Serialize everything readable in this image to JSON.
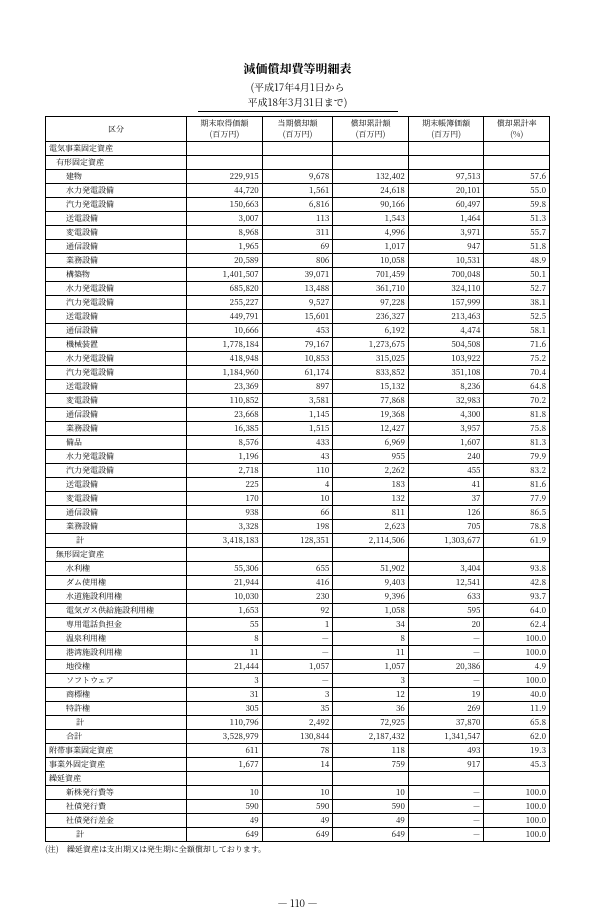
{
  "title": "減価償却費等明細表",
  "period1": "(平成17年4月1日から",
  "period2": "平成18年3月31日まで)",
  "headers": [
    "区分",
    "期末取得価額\n(百万円)",
    "当期償却額\n(百万円)",
    "償却累計額\n(百万円)",
    "期末帳簿価額\n(百万円)",
    "償却累計率\n(%)"
  ],
  "rows": [
    {
      "t": "電気事業固定資産",
      "i": 0
    },
    {
      "t": "有形固定資産",
      "i": 1
    },
    {
      "t": "建物",
      "i": 2,
      "v": [
        "229,915",
        "9,678",
        "132,402",
        "97,513",
        "57.6"
      ]
    },
    {
      "t": "水力発電設備",
      "i": 2,
      "v": [
        "44,720",
        "1,561",
        "24,618",
        "20,101",
        "55.0"
      ]
    },
    {
      "t": "汽力発電設備",
      "i": 2,
      "v": [
        "150,663",
        "6,816",
        "90,166",
        "60,497",
        "59.8"
      ]
    },
    {
      "t": "送電設備",
      "i": 2,
      "v": [
        "3,007",
        "113",
        "1,543",
        "1,464",
        "51.3"
      ]
    },
    {
      "t": "変電設備",
      "i": 2,
      "v": [
        "8,968",
        "311",
        "4,996",
        "3,971",
        "55.7"
      ]
    },
    {
      "t": "通信設備",
      "i": 2,
      "v": [
        "1,965",
        "69",
        "1,017",
        "947",
        "51.8"
      ]
    },
    {
      "t": "業務設備",
      "i": 2,
      "v": [
        "20,589",
        "806",
        "10,058",
        "10,531",
        "48.9"
      ]
    },
    {
      "t": "構築物",
      "i": 2,
      "v": [
        "1,401,507",
        "39,071",
        "701,459",
        "700,048",
        "50.1"
      ]
    },
    {
      "t": "水力発電設備",
      "i": 2,
      "v": [
        "685,820",
        "13,488",
        "361,710",
        "324,110",
        "52.7"
      ]
    },
    {
      "t": "汽力発電設備",
      "i": 2,
      "v": [
        "255,227",
        "9,527",
        "97,228",
        "157,999",
        "38.1"
      ]
    },
    {
      "t": "送電設備",
      "i": 2,
      "v": [
        "449,791",
        "15,601",
        "236,327",
        "213,463",
        "52.5"
      ]
    },
    {
      "t": "通信設備",
      "i": 2,
      "v": [
        "10,666",
        "453",
        "6,192",
        "4,474",
        "58.1"
      ]
    },
    {
      "t": "機械装置",
      "i": 2,
      "v": [
        "1,778,184",
        "79,167",
        "1,273,675",
        "504,508",
        "71.6"
      ]
    },
    {
      "t": "水力発電設備",
      "i": 2,
      "v": [
        "418,948",
        "10,853",
        "315,025",
        "103,922",
        "75.2"
      ]
    },
    {
      "t": "汽力発電設備",
      "i": 2,
      "v": [
        "1,184,960",
        "61,174",
        "833,852",
        "351,108",
        "70.4"
      ]
    },
    {
      "t": "送電設備",
      "i": 2,
      "v": [
        "23,369",
        "897",
        "15,132",
        "8,236",
        "64.8"
      ]
    },
    {
      "t": "変電設備",
      "i": 2,
      "v": [
        "110,852",
        "3,581",
        "77,868",
        "32,983",
        "70.2"
      ]
    },
    {
      "t": "通信設備",
      "i": 2,
      "v": [
        "23,668",
        "1,145",
        "19,368",
        "4,300",
        "81.8"
      ]
    },
    {
      "t": "業務設備",
      "i": 2,
      "v": [
        "16,385",
        "1,515",
        "12,427",
        "3,957",
        "75.8"
      ]
    },
    {
      "t": "備品",
      "i": 2,
      "v": [
        "8,576",
        "433",
        "6,969",
        "1,607",
        "81.3"
      ]
    },
    {
      "t": "水力発電設備",
      "i": 2,
      "v": [
        "1,196",
        "43",
        "955",
        "240",
        "79.9"
      ]
    },
    {
      "t": "汽力発電設備",
      "i": 2,
      "v": [
        "2,718",
        "110",
        "2,262",
        "455",
        "83.2"
      ]
    },
    {
      "t": "送電設備",
      "i": 2,
      "v": [
        "225",
        "4",
        "183",
        "41",
        "81.6"
      ]
    },
    {
      "t": "変電設備",
      "i": 2,
      "v": [
        "170",
        "10",
        "132",
        "37",
        "77.9"
      ]
    },
    {
      "t": "通信設備",
      "i": 2,
      "v": [
        "938",
        "66",
        "811",
        "126",
        "86.5"
      ]
    },
    {
      "t": "業務設備",
      "i": 2,
      "v": [
        "3,328",
        "198",
        "2,623",
        "705",
        "78.8"
      ]
    },
    {
      "t": "計",
      "i": 3,
      "v": [
        "3,418,183",
        "128,351",
        "2,114,506",
        "1,303,677",
        "61.9"
      ]
    },
    {
      "t": "無形固定資産",
      "i": 1
    },
    {
      "t": "水利権",
      "i": 2,
      "v": [
        "55,306",
        "655",
        "51,902",
        "3,404",
        "93.8"
      ]
    },
    {
      "t": "ダム使用権",
      "i": 2,
      "v": [
        "21,944",
        "416",
        "9,403",
        "12,541",
        "42.8"
      ]
    },
    {
      "t": "水道施設利用権",
      "i": 2,
      "v": [
        "10,030",
        "230",
        "9,396",
        "633",
        "93.7"
      ]
    },
    {
      "t": "電気ガス供給施設利用権",
      "i": 2,
      "v": [
        "1,653",
        "92",
        "1,058",
        "595",
        "64.0"
      ]
    },
    {
      "t": "専用電話負担金",
      "i": 2,
      "v": [
        "55",
        "1",
        "34",
        "20",
        "62.4"
      ]
    },
    {
      "t": "温泉利用権",
      "i": 2,
      "v": [
        "8",
        "－",
        "8",
        "－",
        "100.0"
      ]
    },
    {
      "t": "港湾施設利用権",
      "i": 2,
      "v": [
        "11",
        "－",
        "11",
        "－",
        "100.0"
      ]
    },
    {
      "t": "地役権",
      "i": 2,
      "v": [
        "21,444",
        "1,057",
        "1,057",
        "20,386",
        "4.9"
      ]
    },
    {
      "t": "ソフトウェア",
      "i": 2,
      "v": [
        "3",
        "－",
        "3",
        "－",
        "100.0"
      ]
    },
    {
      "t": "商標権",
      "i": 2,
      "v": [
        "31",
        "3",
        "12",
        "19",
        "40.0"
      ]
    },
    {
      "t": "特許権",
      "i": 2,
      "v": [
        "305",
        "35",
        "36",
        "269",
        "11.9"
      ]
    },
    {
      "t": "計",
      "i": 3,
      "v": [
        "110,796",
        "2,492",
        "72,925",
        "37,870",
        "65.8"
      ]
    },
    {
      "t": "合計",
      "i": 2,
      "v": [
        "3,528,979",
        "130,844",
        "2,187,432",
        "1,341,547",
        "62.0"
      ]
    },
    {
      "t": "附帯事業固定資産",
      "i": 0,
      "v": [
        "611",
        "78",
        "118",
        "493",
        "19.3"
      ]
    },
    {
      "t": "事業外固定資産",
      "i": 0,
      "v": [
        "1,677",
        "14",
        "759",
        "917",
        "45.3"
      ]
    },
    {
      "t": "繰延資産",
      "i": 0
    },
    {
      "t": "新株発行費等",
      "i": 2,
      "v": [
        "10",
        "10",
        "10",
        "－",
        "100.0"
      ]
    },
    {
      "t": "社債発行費",
      "i": 2,
      "v": [
        "590",
        "590",
        "590",
        "－",
        "100.0"
      ]
    },
    {
      "t": "社債発行差金",
      "i": 2,
      "v": [
        "49",
        "49",
        "49",
        "－",
        "100.0"
      ]
    },
    {
      "t": "計",
      "i": 3,
      "v": [
        "649",
        "649",
        "649",
        "－",
        "100.0"
      ]
    }
  ],
  "note": "(注)　繰延資産は支出期又は発生期に全額償却しております。",
  "page": "― 110 ―"
}
